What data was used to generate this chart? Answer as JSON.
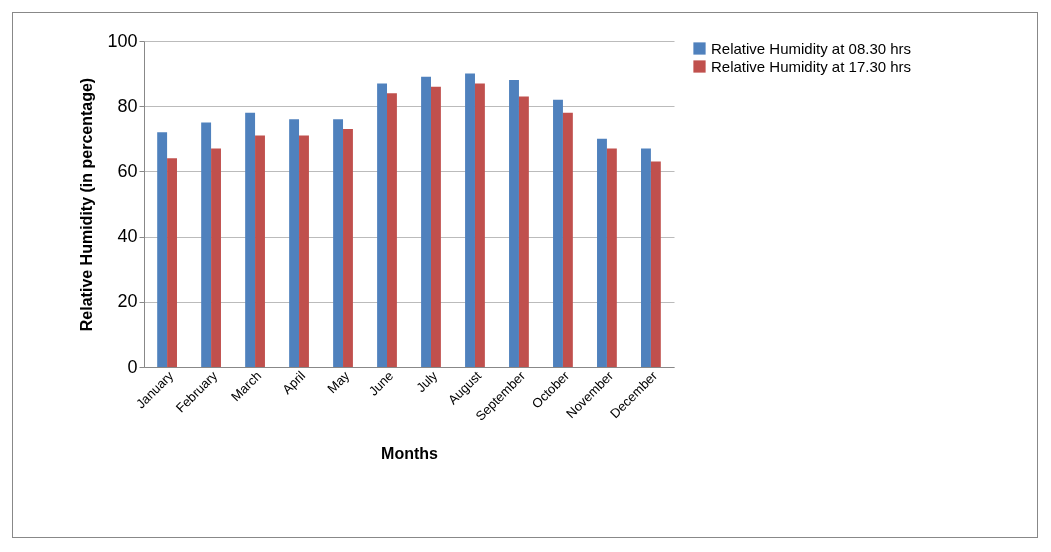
{
  "chart_data": {
    "type": "bar",
    "xlabel": "Months",
    "ylabel": "Relative Humidity (in percentage)",
    "categories": [
      "January",
      "February",
      "March",
      "April",
      "May",
      "June",
      "July",
      "August",
      "September",
      "October",
      "November",
      "December"
    ],
    "series": [
      {
        "name": "Relative Humidity at 08.30 hrs",
        "color": "#4f81bd",
        "values": [
          72,
          75,
          78,
          76,
          76,
          87,
          89,
          90,
          88,
          82,
          70,
          67
        ]
      },
      {
        "name": "Relative Humidity at 17.30 hrs",
        "color": "#c0504d",
        "values": [
          64,
          67,
          71,
          71,
          73,
          84,
          86,
          87,
          83,
          78,
          67,
          63
        ]
      }
    ],
    "ylim": [
      0,
      100
    ],
    "yticks": [
      0,
      20,
      40,
      60,
      80,
      100
    ],
    "grid": "y",
    "legend": "right"
  }
}
